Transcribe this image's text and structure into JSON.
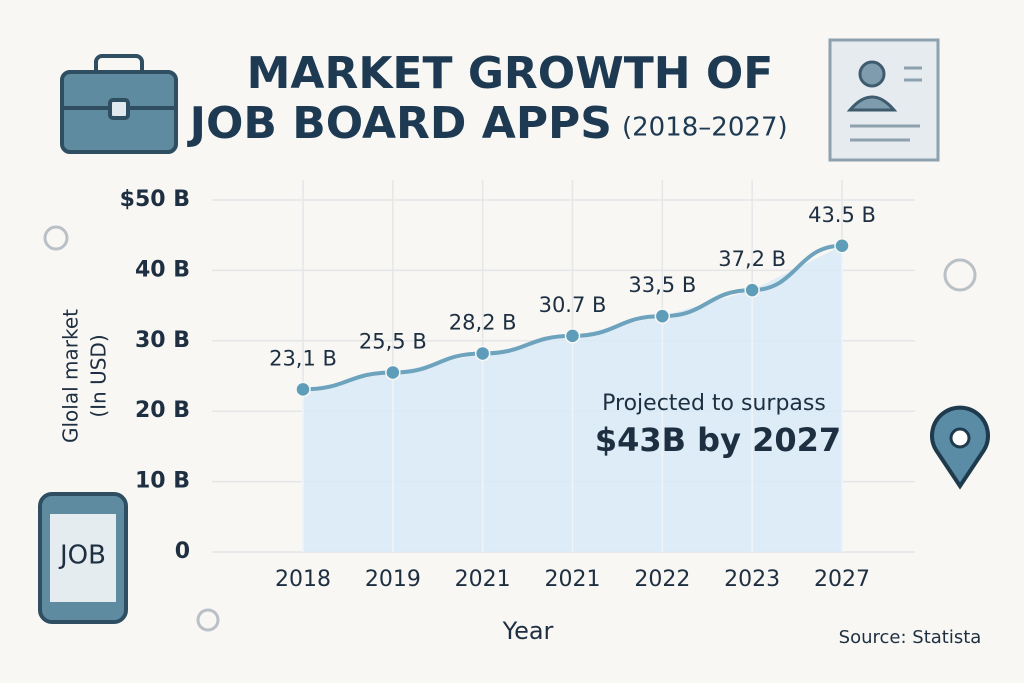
{
  "chart_data": {
    "type": "area-line",
    "title": [
      "MARKET GROWTH OF",
      "JOB BOARD APPS",
      "(2018–2027)"
    ],
    "ylabel": [
      "Glolal market",
      "(In USD)"
    ],
    "xlabel": "Year",
    "categories": [
      "2018",
      "2019",
      "2021",
      "2021",
      "2022",
      "2023",
      "2027"
    ],
    "values": [
      23.1,
      25.5,
      28.2,
      30.7,
      33.5,
      37.2,
      43.5
    ],
    "value_labels": [
      "23,1 B",
      "25,5 B",
      "28,2 B",
      "30.7 B",
      "33,5 B",
      "37,2 B",
      "43.5 B"
    ],
    "ylim": [
      0,
      50
    ],
    "yticks": [
      0,
      {
        "value": 10,
        "label": "10 B"
      },
      {
        "value": 20,
        "label": "20 B"
      },
      {
        "value": 30,
        "label": "30 B"
      },
      {
        "value": 40,
        "label": "40 B"
      },
      {
        "value": 50,
        "label": "$50 B"
      }
    ],
    "grid": true,
    "line_color": "#6ea3bd",
    "point_color": "#5d9db9",
    "fill_color": "#d8eaf6",
    "annotation": [
      "Projected to surpass",
      "$43B by 2027"
    ],
    "source": "Source: Statista",
    "icon_text": "JOB"
  }
}
